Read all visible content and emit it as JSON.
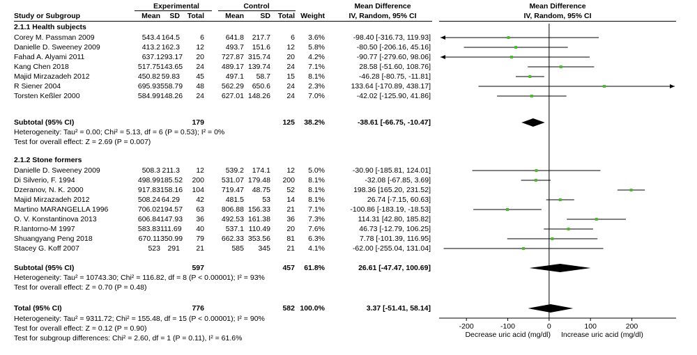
{
  "headers": {
    "experimental": "Experimental",
    "control": "Control",
    "mean_difference": "Mean Difference",
    "study": "Study or Subgroup",
    "mean": "Mean",
    "sd": "SD",
    "total": "Total",
    "weight": "Weight",
    "method": "IV, Random, 95% CI"
  },
  "groups": [
    {
      "title": "2.1.1 Health subjects",
      "rows": [
        {
          "study": "Corey M. Passman  2009",
          "em": "543.4",
          "esd": "164.5",
          "et": "6",
          "cm": "641.8",
          "csd": "217.7",
          "ct": "6",
          "w": "3.6%",
          "ci": "-98.40 [-316.73, 119.93]"
        },
        {
          "study": "Danielle D. Sweeney  2009",
          "em": "413.2",
          "esd": "162.3",
          "et": "12",
          "cm": "493.7",
          "csd": "151.6",
          "ct": "12",
          "w": "5.8%",
          "ci": "-80.50 [-206.16, 45.16]"
        },
        {
          "study": "Fahad A. Alyami  2011",
          "em": "637.1",
          "esd": "293.17",
          "et": "20",
          "cm": "727.87",
          "csd": "315.74",
          "ct": "20",
          "w": "4.2%",
          "ci": "-90.77 [-279.60, 98.06]"
        },
        {
          "study": "Kang Chen  2018",
          "em": "517.75",
          "esd": "143.65",
          "et": "24",
          "cm": "489.17",
          "csd": "139.74",
          "ct": "24",
          "w": "7.1%",
          "ci": "28.58 [-51.60, 108.76]"
        },
        {
          "study": "Majid Mirzazadeh 2012",
          "em": "450.82",
          "esd": "59.83",
          "et": "45",
          "cm": "497.1",
          "csd": "58.7",
          "ct": "15",
          "w": "8.1%",
          "ci": "-46.28 [-80.75, -11.81]"
        },
        {
          "study": "R Siener  2004",
          "em": "695.93",
          "esd": "558.79",
          "et": "48",
          "cm": "562.29",
          "csd": "650.6",
          "ct": "24",
          "w": "2.3%",
          "ci": "133.64 [-170.89, 438.17]"
        },
        {
          "study": "Torsten Keßler  2000",
          "em": "584.99",
          "esd": "148.26",
          "et": "24",
          "cm": "627.01",
          "csd": "148.26",
          "ct": "24",
          "w": "7.0%",
          "ci": "-42.02 [-125.90, 41.86]"
        }
      ],
      "subtotal": {
        "label": "Subtotal (95% CI)",
        "et": "179",
        "ct": "125",
        "w": "38.2%",
        "ci": "-38.61 [-66.75, -10.47]"
      },
      "heterogeneity": "Heterogeneity: Tau² = 0.00; Chi² = 5.13, df = 6 (P = 0.53); I² = 0%",
      "overall": "Test for overall effect: Z = 2.69 (P = 0.007)"
    },
    {
      "title": "2.1.2 Stone formers",
      "rows": [
        {
          "study": "Danielle D. Sweeney  2009",
          "em": "508.3",
          "esd": "211.3",
          "et": "12",
          "cm": "539.2",
          "csd": "174.1",
          "ct": "12",
          "w": "5.0%",
          "ci": "-30.90 [-185.81, 124.01]"
        },
        {
          "study": "Di Silverio, F. 1994",
          "em": "498.99",
          "esd": "185.52",
          "et": "200",
          "cm": "531.07",
          "csd": "179.48",
          "ct": "200",
          "w": "8.1%",
          "ci": "-32.08 [-67.85, 3.69]"
        },
        {
          "study": "Dzeranov, N. K. 2000",
          "em": "917.83",
          "esd": "158.16",
          "et": "104",
          "cm": "719.47",
          "csd": "48.75",
          "ct": "52",
          "w": "8.1%",
          "ci": "198.36 [165.20, 231.52]"
        },
        {
          "study": "Majid Mirzazadeh 2012",
          "em": "508.24",
          "esd": "64.29",
          "et": "42",
          "cm": "481.5",
          "csd": "53",
          "ct": "14",
          "w": "8.1%",
          "ci": "26.74 [-7.15, 60.63]"
        },
        {
          "study": "Martino MARANGELLA 1996",
          "em": "706.02",
          "esd": "194.57",
          "et": "63",
          "cm": "806.88",
          "csd": "156.33",
          "ct": "21",
          "w": "7.1%",
          "ci": "-100.86 [-183.19, -18.53]"
        },
        {
          "study": "O. V. Konstantinova  2013",
          "em": "606.84",
          "esd": "147.93",
          "et": "36",
          "cm": "492.53",
          "csd": "161.38",
          "ct": "36",
          "w": "7.3%",
          "ci": "114.31 [42.80, 185.82]"
        },
        {
          "study": "R.Iantorno-M 1997",
          "em": "583.83",
          "esd": "111.69",
          "et": "40",
          "cm": "537.1",
          "csd": "110.49",
          "ct": "20",
          "w": "7.6%",
          "ci": "46.73 [-12.79, 106.25]"
        },
        {
          "study": "Shuangyang Peng  2018",
          "em": "670.11",
          "esd": "350.99",
          "et": "79",
          "cm": "662.33",
          "csd": "353.56",
          "ct": "81",
          "w": "6.3%",
          "ci": "7.78 [-101.39, 116.95]"
        },
        {
          "study": "Stacey G. Koff 2007",
          "em": "523",
          "esd": "291",
          "et": "21",
          "cm": "585",
          "csd": "345",
          "ct": "21",
          "w": "4.1%",
          "ci": "-62.00 [-255.04, 131.04]"
        }
      ],
      "subtotal": {
        "label": "Subtotal (95% CI)",
        "et": "597",
        "ct": "457",
        "w": "61.8%",
        "ci": "26.61 [-47.47, 100.69]"
      },
      "heterogeneity": "Heterogeneity: Tau² = 10743.30; Chi² = 116.82, df = 8 (P < 0.00001); I² = 93%",
      "overall": "Test for overall effect: Z = 0.70 (P = 0.48)"
    }
  ],
  "total": {
    "label": "Total (95% CI)",
    "et": "776",
    "ct": "582",
    "w": "100.0%",
    "ci": "3.37 [-51.41, 58.14]"
  },
  "footer": [
    "Heterogeneity: Tau² = 9311.72; Chi² = 155.48, df = 15 (P < 0.00001); I² = 90%",
    "Test for overall effect: Z = 0.12 (P = 0.90)",
    "Test for subgroup differences: Chi² = 2.60, df = 1 (P = 0.11), I² = 61.6%"
  ],
  "chart_data": {
    "type": "forest",
    "title": "Mean Difference",
    "subtitle": "IV, Random, 95% CI",
    "xlim": [
      -266,
      307
    ],
    "xticks": [
      -200,
      -100,
      0,
      100,
      200
    ],
    "xticklabels": [
      "-200",
      "-100",
      "0",
      "100",
      "200"
    ],
    "xlabel_left": "Decrease uric acid (mg/dl)",
    "xlabel_right": "Increase uric acid (mg/dl)",
    "colors": {
      "point": "#4cbb2b",
      "diamond": "#000000",
      "line": "#000000"
    },
    "studies": [
      {
        "study": "Corey M. Passman  2009",
        "md": -98.4,
        "lo": -316.73,
        "hi": 119.93
      },
      {
        "study": "Danielle D. Sweeney  2009",
        "md": -80.5,
        "lo": -206.16,
        "hi": 45.16
      },
      {
        "study": "Fahad A. Alyami  2011",
        "md": -90.77,
        "lo": -279.6,
        "hi": 98.06
      },
      {
        "study": "Kang Chen  2018",
        "md": 28.58,
        "lo": -51.6,
        "hi": 108.76
      },
      {
        "study": "Majid Mirzazadeh 2012",
        "md": -46.28,
        "lo": -80.75,
        "hi": -11.81
      },
      {
        "study": "R Siener  2004",
        "md": 133.64,
        "lo": -170.89,
        "hi": 438.17
      },
      {
        "study": "Torsten Keßler  2000",
        "md": -42.02,
        "lo": -125.9,
        "hi": 41.86
      },
      {
        "study": "Danielle D. Sweeney  2009",
        "md": -30.9,
        "lo": -185.81,
        "hi": 124.01
      },
      {
        "study": "Di Silverio, F. 1994",
        "md": -32.08,
        "lo": -67.85,
        "hi": 3.69
      },
      {
        "study": "Dzeranov, N. K. 2000",
        "md": 198.36,
        "lo": 165.2,
        "hi": 231.52
      },
      {
        "study": "Majid Mirzazadeh 2012",
        "md": 26.74,
        "lo": -7.15,
        "hi": 60.63
      },
      {
        "study": "Martino MARANGELLA 1996",
        "md": -100.86,
        "lo": -183.19,
        "hi": -18.53
      },
      {
        "study": "O. V. Konstantinova  2013",
        "md": 114.31,
        "lo": 42.8,
        "hi": 185.82
      },
      {
        "study": "R.Iantorno-M 1997",
        "md": 46.73,
        "lo": -12.79,
        "hi": 106.25
      },
      {
        "study": "Shuangyang Peng  2018",
        "md": 7.78,
        "lo": -101.39,
        "hi": 116.95
      },
      {
        "study": "Stacey G. Koff 2007",
        "md": -62.0,
        "lo": -255.04,
        "hi": 131.04
      }
    ],
    "summaries": [
      {
        "label": "Subtotal (95% CI)",
        "md": -38.61,
        "lo": -66.75,
        "hi": -10.47
      },
      {
        "label": "Subtotal (95% CI)",
        "md": 26.61,
        "lo": -47.47,
        "hi": 100.69
      },
      {
        "label": "Total (95% CI)",
        "md": 3.37,
        "lo": -51.41,
        "hi": 58.14
      }
    ]
  }
}
